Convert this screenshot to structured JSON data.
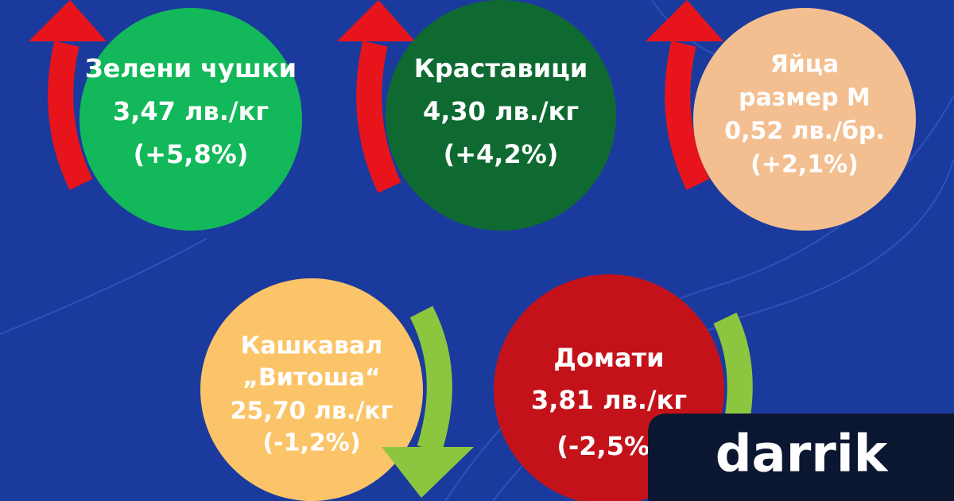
{
  "items": [
    {
      "lines": [
        "Зелени чушки",
        "3,47 лв./кг",
        "(+5,8%)"
      ]
    },
    {
      "lines": [
        "Краставици",
        "4,30 лв./кг",
        "(+4,2%)"
      ]
    },
    {
      "lines": [
        "Яйца",
        "размер М",
        "0,52 лв./бр.",
        "(+2,1%)"
      ]
    },
    {
      "lines": [
        "Кашкавал",
        "„Витоша“",
        "25,70 лв./кг",
        "(-1,2%)"
      ]
    },
    {
      "lines": [
        "Домати",
        "3,81 лв./кг",
        "(-2,5%)"
      ]
    }
  ],
  "logo": "darrik"
}
